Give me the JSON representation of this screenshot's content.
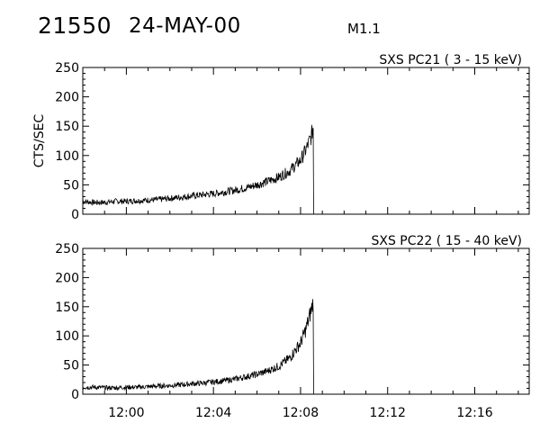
{
  "header": {
    "id": "21550",
    "date": "24-MAY-00",
    "flare_class": "M1.1"
  },
  "chart_data": [
    {
      "type": "line",
      "title": "SXS PC21  (  3 - 15 keV)",
      "ylabel": "CTS/SEC",
      "xlabel": "",
      "ylim": [
        0,
        250
      ],
      "xlim": [
        "11:58:00",
        "12:18:30"
      ],
      "yticks": [
        0,
        50,
        100,
        150,
        200,
        250
      ],
      "xticks": [
        "12:00",
        "12:04",
        "12:08",
        "12:12",
        "12:16"
      ],
      "grid": false,
      "series": [
        {
          "x": [
            "11:58:00",
            "11:58:30",
            "11:59:00",
            "11:59:30",
            "12:00:00",
            "12:00:30",
            "12:01:00",
            "12:01:30",
            "12:02:00",
            "12:02:30",
            "12:03:00",
            "12:03:30",
            "12:04:00",
            "12:04:30",
            "12:05:00",
            "12:05:30",
            "12:06:00",
            "12:06:30",
            "12:07:00",
            "12:07:30",
            "12:08:00",
            "12:08:15",
            "12:08:30",
            "12:08:35",
            "12:08:36"
          ],
          "values": [
            22,
            20,
            20,
            22,
            22,
            23,
            24,
            25,
            27,
            29,
            31,
            33,
            35,
            38,
            41,
            45,
            50,
            56,
            63,
            74,
            92,
            110,
            133,
            150,
            0
          ]
        }
      ]
    },
    {
      "type": "line",
      "title": "SXS PC22  ( 15 - 40 keV)",
      "ylabel": "",
      "xlabel": "",
      "ylim": [
        0,
        250
      ],
      "xlim": [
        "11:58:00",
        "12:18:30"
      ],
      "yticks": [
        0,
        50,
        100,
        150,
        200,
        250
      ],
      "xticks": [
        "12:00",
        "12:04",
        "12:08",
        "12:12",
        "12:16"
      ],
      "grid": false,
      "series": [
        {
          "x": [
            "11:58:00",
            "11:58:30",
            "11:59:00",
            "11:59:30",
            "12:00:00",
            "12:00:30",
            "12:01:00",
            "12:01:30",
            "12:02:00",
            "12:02:30",
            "12:03:00",
            "12:03:30",
            "12:04:00",
            "12:04:30",
            "12:05:00",
            "12:05:30",
            "12:06:00",
            "12:06:30",
            "12:07:00",
            "12:07:30",
            "12:08:00",
            "12:08:15",
            "12:08:30",
            "12:08:35",
            "12:08:36"
          ],
          "values": [
            12,
            12,
            11,
            11,
            12,
            12,
            13,
            14,
            15,
            16,
            18,
            19,
            21,
            23,
            26,
            30,
            34,
            40,
            48,
            62,
            88,
            112,
            145,
            160,
            0
          ]
        }
      ]
    }
  ]
}
